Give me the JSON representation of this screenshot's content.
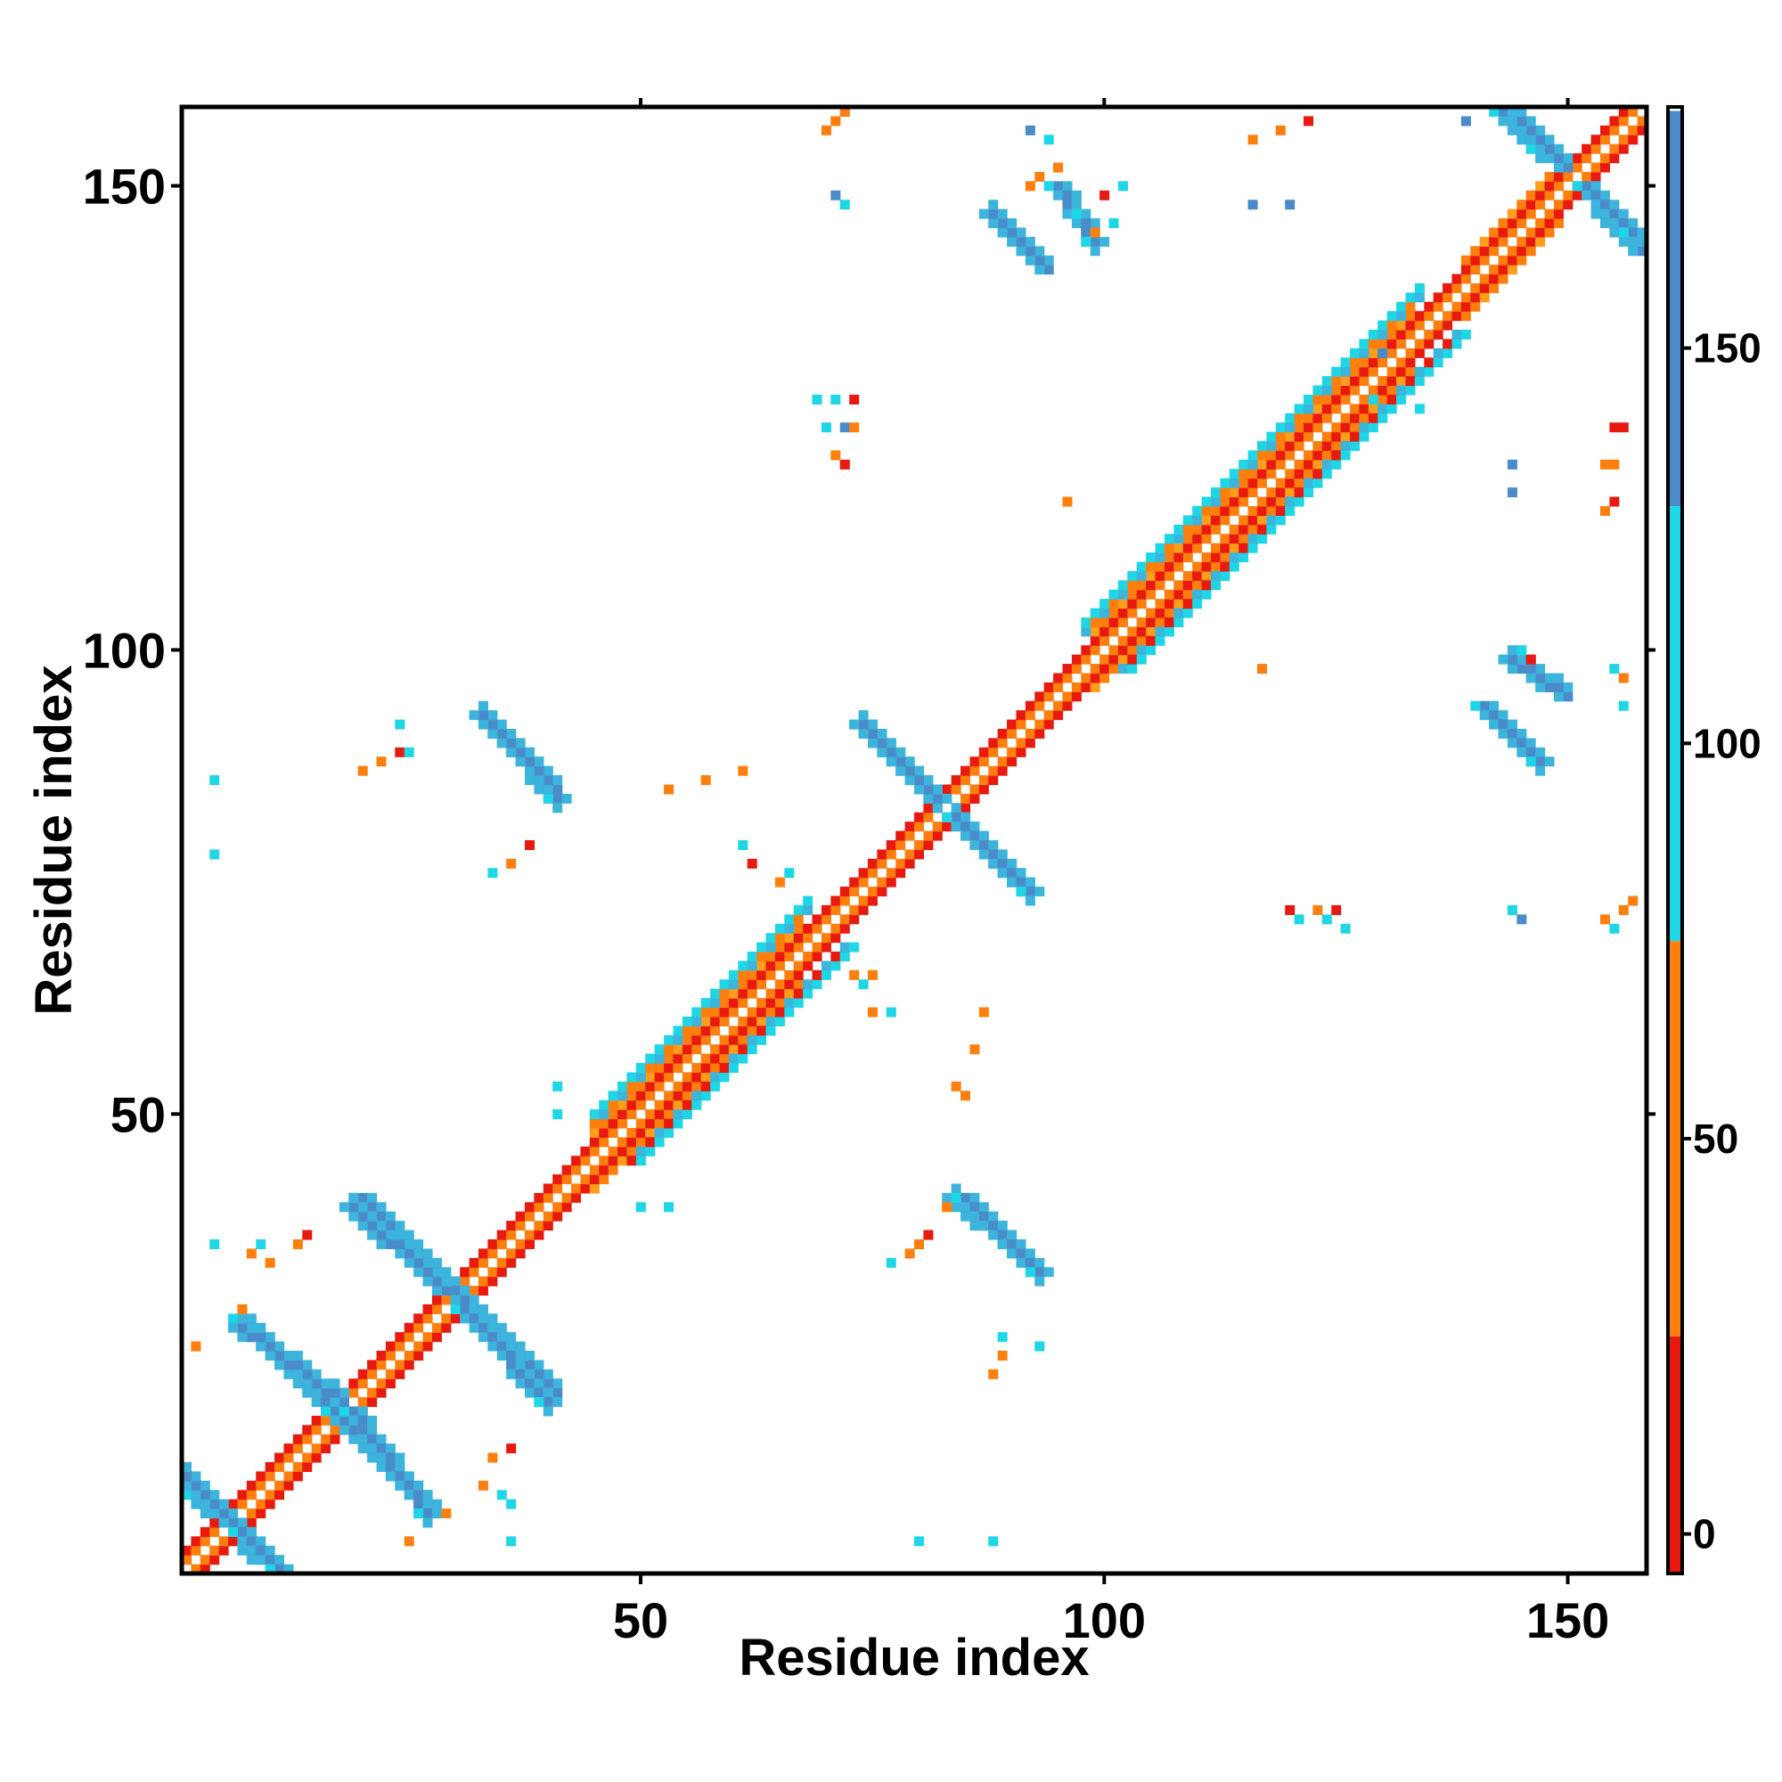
{
  "chart_data": {
    "type": "heatmap",
    "title": "",
    "xlabel": "Residue index",
    "ylabel": "Residue index",
    "xlim": [
      1,
      158
    ],
    "ylim": [
      1,
      158
    ],
    "x_ticks": [
      50,
      100,
      150
    ],
    "y_ticks": [
      50,
      100,
      150
    ],
    "x_tick_labels": [
      "50",
      "100",
      "150"
    ],
    "y_tick_labels": [
      "50",
      "100",
      "150"
    ],
    "colorbar": {
      "range": [
        -5,
        180
      ],
      "ticks": [
        0,
        50,
        100,
        150
      ],
      "tick_labels": [
        "0",
        "50",
        "100",
        "150"
      ],
      "bands": [
        {
          "from": -5,
          "to": 25,
          "color": "#e8190f"
        },
        {
          "from": 25,
          "to": 75,
          "color": "#ff7f0e"
        },
        {
          "from": 75,
          "to": 130,
          "color": "#1fd6e6"
        },
        {
          "from": 130,
          "to": 180,
          "color": "#4a8cc9"
        },
        {
          "from": 180,
          "to": 180.5,
          "color": "#ffffff"
        }
      ]
    },
    "grid": false,
    "legend": "colorbar right",
    "colors": {
      "red": "#e8190f",
      "orange": "#ff7f0e",
      "amber": "#ff9e1a",
      "cyan": "#1fd6e6",
      "lightblue": "#3cb4dc",
      "steelblue": "#4a8cc9"
    },
    "cells_description": "Contact/angle map of residue pairs; values encoded by color bands",
    "diagonal": {
      "from": 1,
      "to": 158
    },
    "helix_bands": [
      {
        "from": 45,
        "to": 68,
        "width": 5
      },
      {
        "from": 98,
        "to": 134,
        "width": 5
      },
      {
        "from": 138,
        "to": 150,
        "width": 3
      }
    ],
    "antiparallel_segments": [
      {
        "x1": 20,
        "y1": 41,
        "x2": 30,
        "y2": 31,
        "color": "steelblue"
      },
      {
        "x1": 7,
        "y1": 28,
        "x2": 17,
        "y2": 18,
        "color": "steelblue"
      },
      {
        "x1": 19,
        "y1": 18,
        "x2": 27,
        "y2": 7,
        "color": "steelblue"
      },
      {
        "x1": 31,
        "y1": 29,
        "x2": 40,
        "y2": 19,
        "color": "steelblue"
      },
      {
        "x1": 2,
        "y1": 9,
        "x2": 6,
        "y2": 6,
        "color": "steelblue"
      },
      {
        "x1": 7,
        "y1": 5,
        "x2": 11,
        "y2": 1,
        "color": "steelblue"
      },
      {
        "x1": 35,
        "y1": 91,
        "x2": 41,
        "y2": 84,
        "color": "steelblue"
      },
      {
        "x1": 74,
        "y1": 92,
        "x2": 82,
        "y2": 84,
        "color": "steelblue"
      },
      {
        "x1": 84,
        "y1": 82,
        "x2": 92,
        "y2": 74,
        "color": "steelblue"
      },
      {
        "x1": 85,
        "y1": 41,
        "x2": 93,
        "y2": 33,
        "color": "steelblue"
      },
      {
        "x1": 141,
        "y1": 94,
        "x2": 147,
        "y2": 88,
        "color": "steelblue"
      },
      {
        "x1": 95,
        "y1": 150,
        "x2": 99,
        "y2": 144,
        "color": "steelblue"
      },
      {
        "x1": 143,
        "y1": 158,
        "x2": 147,
        "y2": 154,
        "color": "steelblue"
      },
      {
        "x1": 152,
        "y1": 150,
        "x2": 157,
        "y2": 145,
        "color": "steelblue"
      }
    ],
    "scatter_spots": [
      {
        "x": 71,
        "y": 157,
        "v": 50
      },
      {
        "x": 72,
        "y": 158,
        "v": 60
      },
      {
        "x": 70,
        "y": 156,
        "v": 40
      },
      {
        "x": 71,
        "y": 149,
        "v": 150
      },
      {
        "x": 72,
        "y": 148,
        "v": 110
      },
      {
        "x": 92,
        "y": 156,
        "v": 150
      },
      {
        "x": 94,
        "y": 155,
        "v": 100
      },
      {
        "x": 116,
        "y": 155,
        "v": 40
      },
      {
        "x": 119,
        "y": 156,
        "v": 50
      },
      {
        "x": 122,
        "y": 157,
        "v": 0
      },
      {
        "x": 139,
        "y": 157,
        "v": 150
      },
      {
        "x": 116,
        "y": 148,
        "v": 150
      },
      {
        "x": 120,
        "y": 148,
        "v": 150
      },
      {
        "x": 92,
        "y": 150,
        "v": 40
      },
      {
        "x": 93,
        "y": 151,
        "v": 50
      },
      {
        "x": 95,
        "y": 152,
        "v": 60
      },
      {
        "x": 97,
        "y": 147,
        "v": 110
      },
      {
        "x": 98,
        "y": 146,
        "v": 150
      },
      {
        "x": 99,
        "y": 145,
        "v": 40
      },
      {
        "x": 101,
        "y": 146,
        "v": 110
      },
      {
        "x": 100,
        "y": 149,
        "v": 0
      },
      {
        "x": 102,
        "y": 150,
        "v": 100
      },
      {
        "x": 69,
        "y": 127,
        "v": 110
      },
      {
        "x": 71,
        "y": 127,
        "v": 100
      },
      {
        "x": 73,
        "y": 127,
        "v": 0
      },
      {
        "x": 70,
        "y": 124,
        "v": 110
      },
      {
        "x": 72,
        "y": 124,
        "v": 150
      },
      {
        "x": 73,
        "y": 124,
        "v": 50
      },
      {
        "x": 72,
        "y": 120,
        "v": 0
      },
      {
        "x": 71,
        "y": 121,
        "v": 40
      },
      {
        "x": 96,
        "y": 116,
        "v": 40
      },
      {
        "x": 144,
        "y": 120,
        "v": 150
      },
      {
        "x": 144,
        "y": 117,
        "v": 150
      },
      {
        "x": 155,
        "y": 124,
        "v": 0
      },
      {
        "x": 156,
        "y": 124,
        "v": 0
      },
      {
        "x": 154,
        "y": 120,
        "v": 40
      },
      {
        "x": 155,
        "y": 120,
        "v": 50
      },
      {
        "x": 155,
        "y": 116,
        "v": 0
      },
      {
        "x": 154,
        "y": 115,
        "v": 40
      },
      {
        "x": 130,
        "y": 132,
        "v": 150
      },
      {
        "x": 129,
        "y": 127,
        "v": 110
      },
      {
        "x": 134,
        "y": 126,
        "v": 100
      },
      {
        "x": 117,
        "y": 98,
        "v": 50
      },
      {
        "x": 155,
        "y": 98,
        "v": 100
      },
      {
        "x": 156,
        "y": 97,
        "v": 40
      },
      {
        "x": 156,
        "y": 94,
        "v": 100
      },
      {
        "x": 146,
        "y": 99,
        "v": 0
      },
      {
        "x": 145,
        "y": 100,
        "v": 110
      },
      {
        "x": 120,
        "y": 72,
        "v": 0
      },
      {
        "x": 121,
        "y": 71,
        "v": 100
      },
      {
        "x": 123,
        "y": 72,
        "v": 40
      },
      {
        "x": 124,
        "y": 71,
        "v": 110
      },
      {
        "x": 125,
        "y": 72,
        "v": 0
      },
      {
        "x": 126,
        "y": 70,
        "v": 100
      },
      {
        "x": 144,
        "y": 72,
        "v": 110
      },
      {
        "x": 145,
        "y": 71,
        "v": 150
      },
      {
        "x": 154,
        "y": 71,
        "v": 40
      },
      {
        "x": 156,
        "y": 72,
        "v": 50
      },
      {
        "x": 157,
        "y": 73,
        "v": 60
      },
      {
        "x": 155,
        "y": 70,
        "v": 110
      },
      {
        "x": 4,
        "y": 86,
        "v": 100
      },
      {
        "x": 4,
        "y": 78,
        "v": 100
      },
      {
        "x": 20,
        "y": 87,
        "v": 40
      },
      {
        "x": 22,
        "y": 88,
        "v": 50
      },
      {
        "x": 24,
        "y": 89,
        "v": 0
      },
      {
        "x": 24,
        "y": 92,
        "v": 100
      },
      {
        "x": 25,
        "y": 89,
        "v": 110
      },
      {
        "x": 34,
        "y": 76,
        "v": 100
      },
      {
        "x": 36,
        "y": 77,
        "v": 40
      },
      {
        "x": 38,
        "y": 79,
        "v": 0
      },
      {
        "x": 53,
        "y": 85,
        "v": 50
      },
      {
        "x": 57,
        "y": 86,
        "v": 40
      },
      {
        "x": 61,
        "y": 87,
        "v": 60
      },
      {
        "x": 61,
        "y": 79,
        "v": 100
      },
      {
        "x": 62,
        "y": 77,
        "v": 0
      },
      {
        "x": 66,
        "y": 76,
        "v": 110
      },
      {
        "x": 65,
        "y": 75,
        "v": 40
      },
      {
        "x": 73,
        "y": 65,
        "v": 40
      },
      {
        "x": 75,
        "y": 65,
        "v": 60
      },
      {
        "x": 74,
        "y": 64,
        "v": 100
      },
      {
        "x": 75,
        "y": 61,
        "v": 50
      },
      {
        "x": 77,
        "y": 61,
        "v": 100
      },
      {
        "x": 87,
        "y": 61,
        "v": 60
      },
      {
        "x": 86,
        "y": 57,
        "v": 40
      },
      {
        "x": 84,
        "y": 53,
        "v": 60
      },
      {
        "x": 85,
        "y": 52,
        "v": 40
      },
      {
        "x": 41,
        "y": 53,
        "v": 100
      },
      {
        "x": 41,
        "y": 50,
        "v": 100
      },
      {
        "x": 50,
        "y": 40,
        "v": 100
      },
      {
        "x": 53,
        "y": 40,
        "v": 100
      },
      {
        "x": 4,
        "y": 36,
        "v": 100
      },
      {
        "x": 8,
        "y": 35,
        "v": 50
      },
      {
        "x": 9,
        "y": 36,
        "v": 100
      },
      {
        "x": 10,
        "y": 34,
        "v": 40
      },
      {
        "x": 13,
        "y": 36,
        "v": 50
      },
      {
        "x": 14,
        "y": 37,
        "v": 0
      },
      {
        "x": 2,
        "y": 25,
        "v": 40
      },
      {
        "x": 7,
        "y": 29,
        "v": 60
      },
      {
        "x": 34,
        "y": 13,
        "v": 60
      },
      {
        "x": 36,
        "y": 14,
        "v": 0
      },
      {
        "x": 33,
        "y": 10,
        "v": 40
      },
      {
        "x": 35,
        "y": 9,
        "v": 100
      },
      {
        "x": 36,
        "y": 8,
        "v": 100
      },
      {
        "x": 29,
        "y": 7,
        "v": 40
      },
      {
        "x": 25,
        "y": 4,
        "v": 50
      },
      {
        "x": 36,
        "y": 4,
        "v": 100
      },
      {
        "x": 79,
        "y": 35,
        "v": 40
      },
      {
        "x": 80,
        "y": 36,
        "v": 50
      },
      {
        "x": 81,
        "y": 37,
        "v": 0
      },
      {
        "x": 77,
        "y": 34,
        "v": 100
      },
      {
        "x": 83,
        "y": 40,
        "v": 50
      },
      {
        "x": 88,
        "y": 22,
        "v": 40
      },
      {
        "x": 89,
        "y": 24,
        "v": 50
      },
      {
        "x": 89,
        "y": 26,
        "v": 110
      },
      {
        "x": 93,
        "y": 25,
        "v": 100
      },
      {
        "x": 80,
        "y": 4,
        "v": 100
      },
      {
        "x": 88,
        "y": 4,
        "v": 100
      }
    ]
  }
}
